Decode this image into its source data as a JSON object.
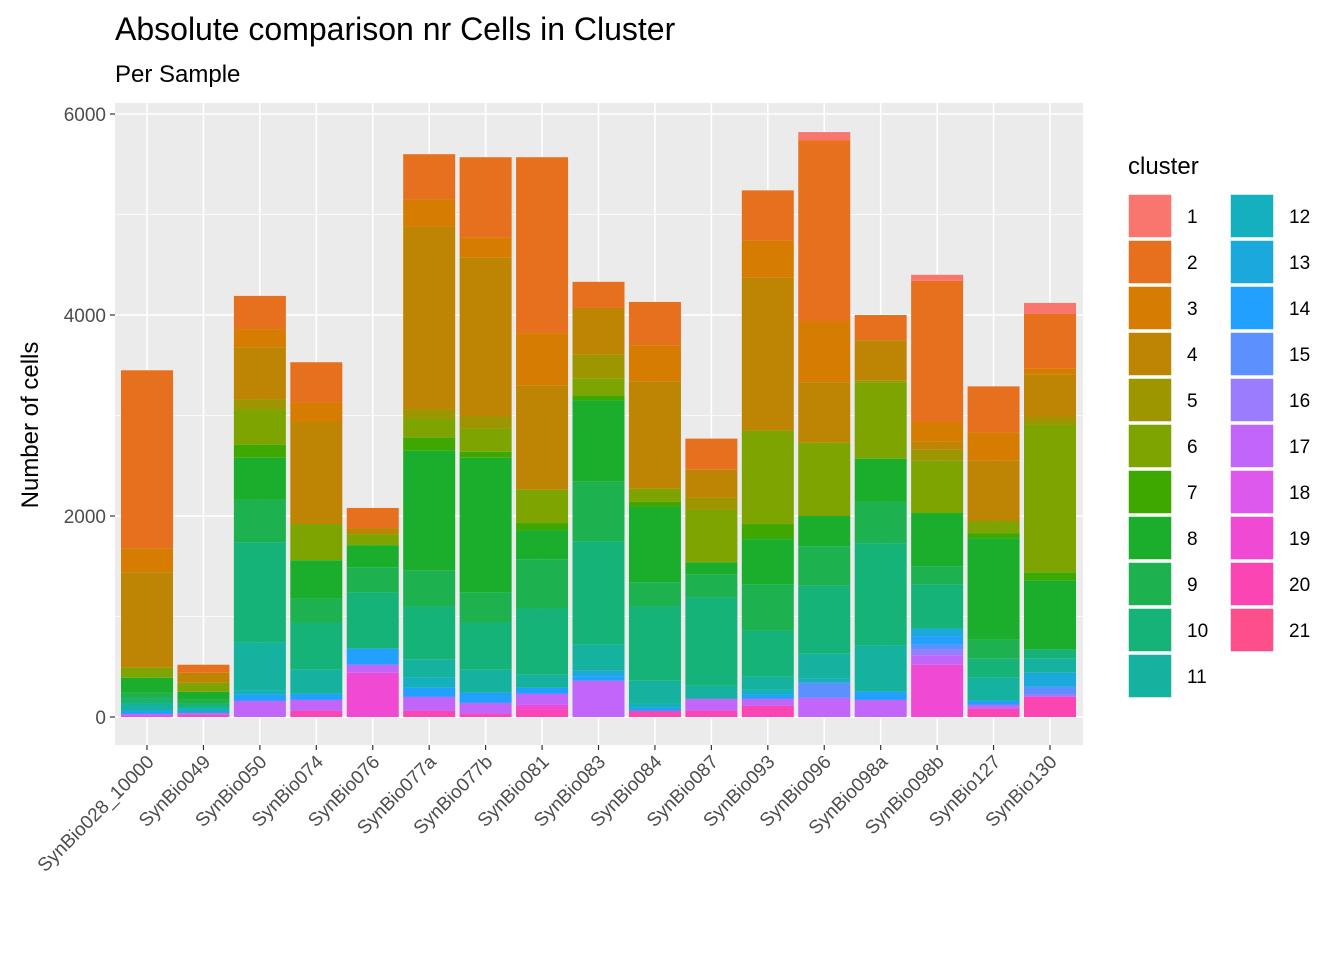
{
  "chart_data": {
    "type": "bar",
    "stacked": true,
    "title": "Absolute comparison nr Cells in Cluster",
    "subtitle": "Per Sample",
    "xlabel": "",
    "ylabel": "Number of cells",
    "ylim": [
      0,
      6300
    ],
    "yticks": [
      0,
      2000,
      4000,
      6000
    ],
    "grid": true,
    "legend": {
      "title": "cluster",
      "position": "right"
    },
    "categories": [
      "SynBio028_10000",
      "SynBio049",
      "SynBio050",
      "SynBio074",
      "SynBio076",
      "SynBio077a",
      "SynBio077b",
      "SynBio081",
      "SynBio083",
      "SynBio084",
      "SynBio087",
      "SynBio093",
      "SynBio096",
      "SynBio098a",
      "SynBio098b",
      "SynBio127",
      "SynBio130"
    ],
    "series": [
      {
        "name": "1",
        "color": "#F8766D",
        "values": [
          0,
          0,
          0,
          0,
          0,
          0,
          0,
          0,
          0,
          0,
          0,
          0,
          80,
          0,
          60,
          0,
          110
        ]
      },
      {
        "name": "2",
        "color": "#E7701E",
        "values": [
          1770,
          80,
          330,
          400,
          200,
          450,
          800,
          1750,
          260,
          430,
          310,
          500,
          1800,
          250,
          1400,
          460,
          540
        ]
      },
      {
        "name": "3",
        "color": "#D67C00",
        "values": [
          240,
          0,
          180,
          190,
          0,
          270,
          200,
          520,
          0,
          360,
          0,
          370,
          610,
          0,
          200,
          280,
          60
        ]
      },
      {
        "name": "4",
        "color": "#BE8504",
        "values": [
          950,
          100,
          520,
          1020,
          60,
          1820,
          1580,
          1040,
          460,
          1070,
          280,
          1520,
          600,
          400,
          80,
          600,
          430
        ]
      },
      {
        "name": "5",
        "color": "#9E9600",
        "values": [
          0,
          0,
          100,
          0,
          0,
          90,
          120,
          0,
          240,
          0,
          120,
          0,
          0,
          20,
          110,
          0,
          70
        ]
      },
      {
        "name": "6",
        "color": "#7DA400",
        "values": [
          100,
          90,
          350,
          360,
          110,
          190,
          230,
          330,
          170,
          130,
          520,
          930,
          730,
          760,
          520,
          120,
          1470
        ]
      },
      {
        "name": "7",
        "color": "#3EA800",
        "values": [
          0,
          0,
          130,
          0,
          0,
          130,
          60,
          70,
          50,
          50,
          0,
          150,
          0,
          0,
          0,
          50,
          80
        ]
      },
      {
        "name": "8",
        "color": "#1BAE2C",
        "values": [
          150,
          80,
          420,
          380,
          220,
          1190,
          1340,
          290,
          810,
          750,
          120,
          450,
          300,
          430,
          530,
          1010,
          690
        ]
      },
      {
        "name": "9",
        "color": "#1DB24F",
        "values": [
          60,
          40,
          420,
          240,
          250,
          360,
          300,
          490,
          590,
          240,
          230,
          460,
          390,
          410,
          180,
          190,
          0
        ]
      },
      {
        "name": "10",
        "color": "#15B378",
        "values": [
          50,
          40,
          1000,
          470,
          560,
          530,
          470,
          660,
          1030,
          740,
          880,
          460,
          680,
          1020,
          440,
          190,
          90
        ]
      },
      {
        "name": "11",
        "color": "#14B29F",
        "values": [
          70,
          0,
          480,
          240,
          0,
          180,
          230,
          130,
          260,
          230,
          130,
          130,
          250,
          460,
          0,
          230,
          140
        ]
      },
      {
        "name": "12",
        "color": "#15B0C0",
        "values": [
          0,
          50,
          40,
          0,
          0,
          100,
          0,
          0,
          0,
          40,
          0,
          50,
          40,
          0,
          0,
          0,
          0
        ]
      },
      {
        "name": "13",
        "color": "#1AA8DD",
        "values": [
          0,
          0,
          0,
          0,
          0,
          0,
          0,
          0,
          60,
          0,
          0,
          0,
          0,
          0,
          80,
          0,
          140
        ]
      },
      {
        "name": "14",
        "color": "#22A0FF",
        "values": [
          30,
          0,
          60,
          60,
          160,
          90,
          100,
          60,
          40,
          30,
          0,
          40,
          0,
          80,
          80,
          40,
          0
        ]
      },
      {
        "name": "15",
        "color": "#5D90FF",
        "values": [
          0,
          0,
          0,
          0,
          0,
          0,
          0,
          0,
          0,
          0,
          0,
          0,
          150,
          0,
          50,
          0,
          80
        ]
      },
      {
        "name": "16",
        "color": "#9A7DFF",
        "values": [
          0,
          0,
          0,
          0,
          0,
          0,
          0,
          0,
          0,
          0,
          0,
          0,
          0,
          0,
          60,
          0,
          0
        ]
      },
      {
        "name": "17",
        "color": "#C266F9",
        "values": [
          20,
          20,
          160,
          110,
          80,
          140,
          110,
          110,
          360,
          0,
          120,
          70,
          190,
          170,
          90,
          40,
          20
        ]
      },
      {
        "name": "18",
        "color": "#DD58EC",
        "values": [
          0,
          0,
          0,
          0,
          0,
          0,
          0,
          0,
          0,
          0,
          0,
          0,
          0,
          0,
          0,
          0,
          0
        ]
      },
      {
        "name": "19",
        "color": "#F049D3",
        "values": [
          10,
          20,
          0,
          0,
          440,
          0,
          0,
          50,
          0,
          0,
          0,
          0,
          0,
          0,
          520,
          0,
          0
        ]
      },
      {
        "name": "20",
        "color": "#FB45B3",
        "values": [
          0,
          0,
          0,
          60,
          0,
          60,
          30,
          70,
          0,
          60,
          60,
          110,
          0,
          0,
          0,
          80,
          200
        ]
      },
      {
        "name": "21",
        "color": "#FF4E8C",
        "values": [
          0,
          0,
          0,
          0,
          0,
          0,
          0,
          0,
          0,
          0,
          0,
          0,
          0,
          0,
          0,
          0,
          0
        ]
      }
    ]
  }
}
